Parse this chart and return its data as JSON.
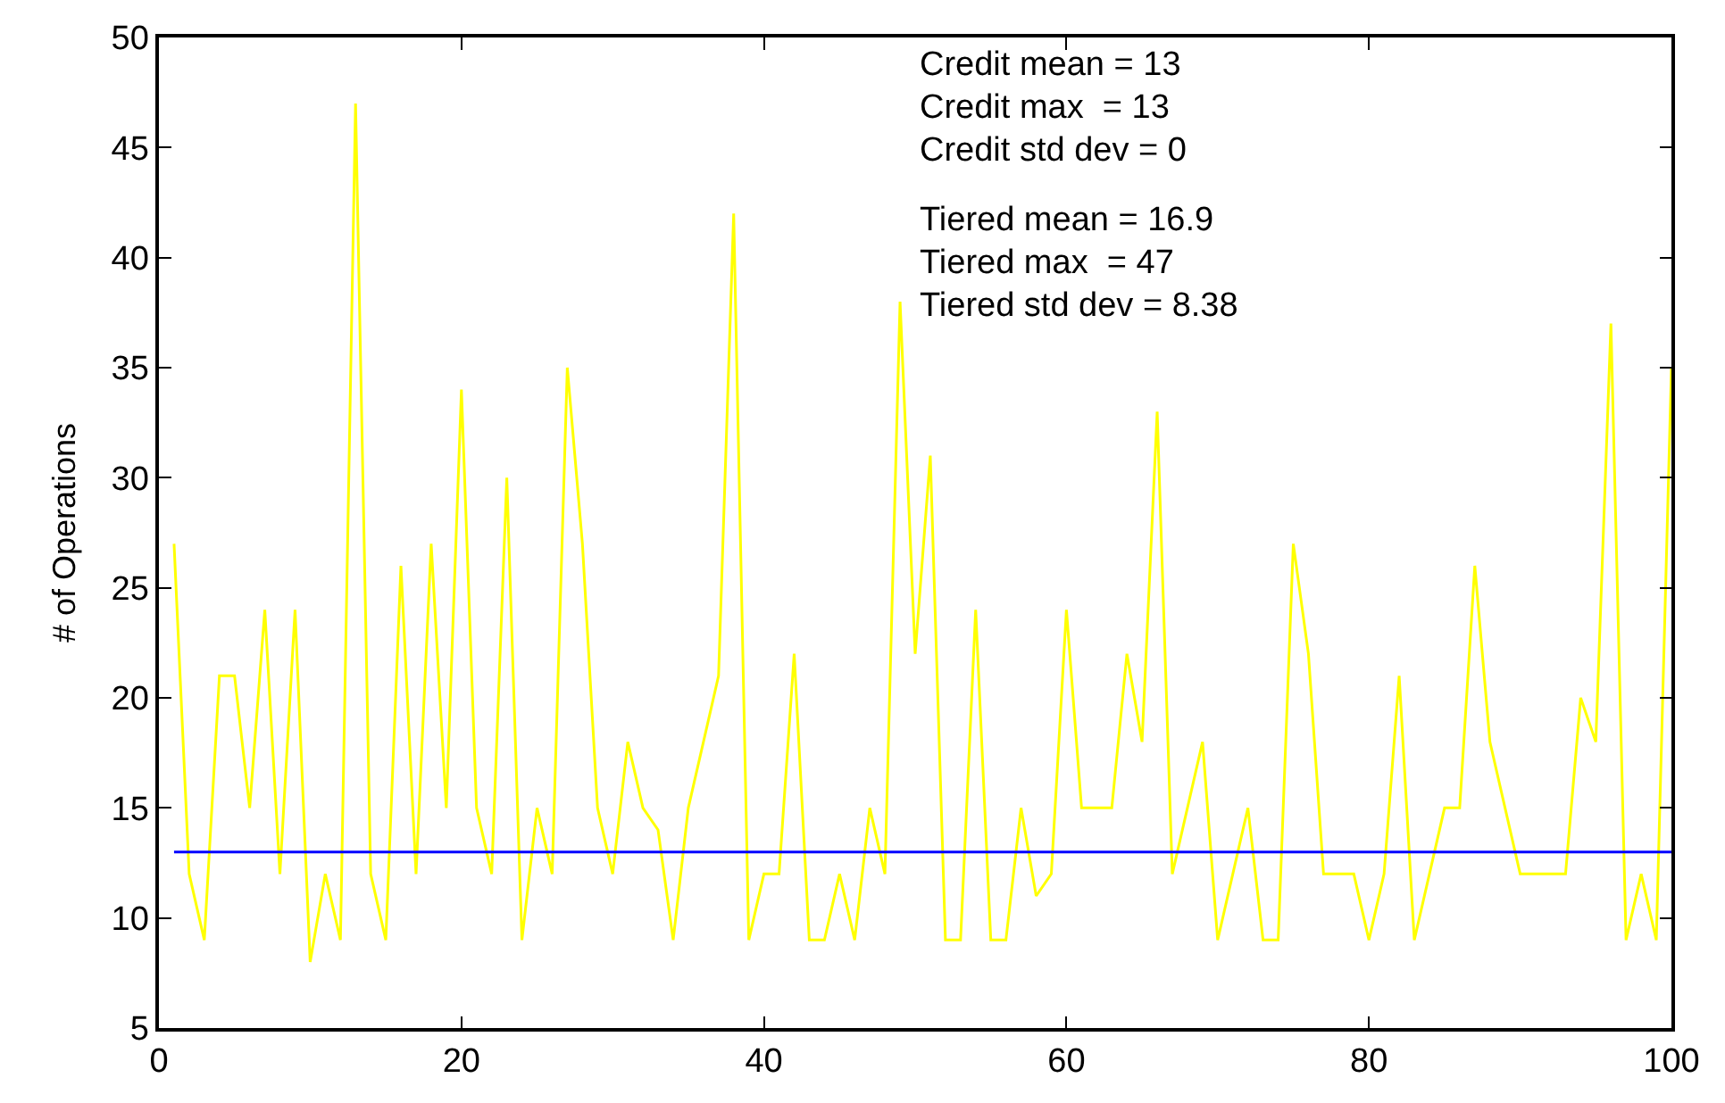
{
  "chart_data": {
    "type": "line",
    "ylabel": "# of Operations",
    "xlim": [
      0,
      100
    ],
    "xticks": [
      0,
      20,
      40,
      60,
      80,
      100
    ],
    "ylim": [
      5,
      50
    ],
    "yticks": [
      5,
      10,
      15,
      20,
      25,
      30,
      35,
      40,
      45,
      50
    ],
    "marker": "none",
    "line_style": "solid",
    "series": [
      {
        "color": "#ffff00",
        "x": [
          1,
          2,
          3,
          4,
          5,
          6,
          7,
          8,
          9,
          10,
          11,
          12,
          13,
          14,
          15,
          16,
          17,
          18,
          19,
          20,
          21,
          22,
          23,
          24,
          25,
          26,
          27,
          28,
          29,
          30,
          31,
          32,
          33,
          34,
          35,
          36,
          37,
          38,
          39,
          40,
          41,
          42,
          43,
          44,
          45,
          46,
          47,
          48,
          49,
          50,
          51,
          52,
          53,
          54,
          55,
          56,
          57,
          58,
          59,
          60,
          61,
          62,
          63,
          64,
          65,
          66,
          67,
          68,
          69,
          70,
          71,
          72,
          73,
          74,
          75,
          76,
          77,
          78,
          79,
          80,
          81,
          82,
          83,
          84,
          85,
          86,
          87,
          88,
          89,
          90,
          91,
          92,
          93,
          94,
          95,
          96,
          97,
          98,
          99,
          100
        ],
        "values": [
          27,
          12,
          9,
          21,
          21,
          15,
          24,
          12,
          24,
          8,
          12,
          9,
          47,
          12,
          9,
          26,
          12,
          27,
          15,
          34,
          15,
          12,
          30,
          9,
          15,
          12,
          35,
          27,
          15,
          12,
          18,
          15,
          14,
          9,
          15,
          18,
          21,
          42,
          9,
          12,
          12,
          22,
          9,
          9,
          12,
          9,
          15,
          12,
          38,
          22,
          31,
          9,
          9,
          24,
          9,
          9,
          15,
          11,
          12,
          24,
          15,
          15,
          15,
          22,
          18,
          33,
          12,
          15,
          18,
          9,
          12,
          15,
          9,
          9,
          27,
          22,
          12,
          12,
          12,
          9,
          12,
          21,
          9,
          12,
          15,
          15,
          26,
          18,
          15,
          12,
          12,
          12,
          12,
          20,
          18,
          37,
          9,
          12,
          9,
          35
        ]
      },
      {
        "color": "#0000ff",
        "x": [
          1,
          100
        ],
        "values": [
          13,
          13
        ]
      }
    ],
    "annotations": [
      "Credit mean = 13",
      "Credit max  = 13",
      "Credit std dev = 0",
      "Tiered mean = 16.9",
      "Tiered max  = 47",
      "Tiered std dev = 8.38"
    ]
  }
}
